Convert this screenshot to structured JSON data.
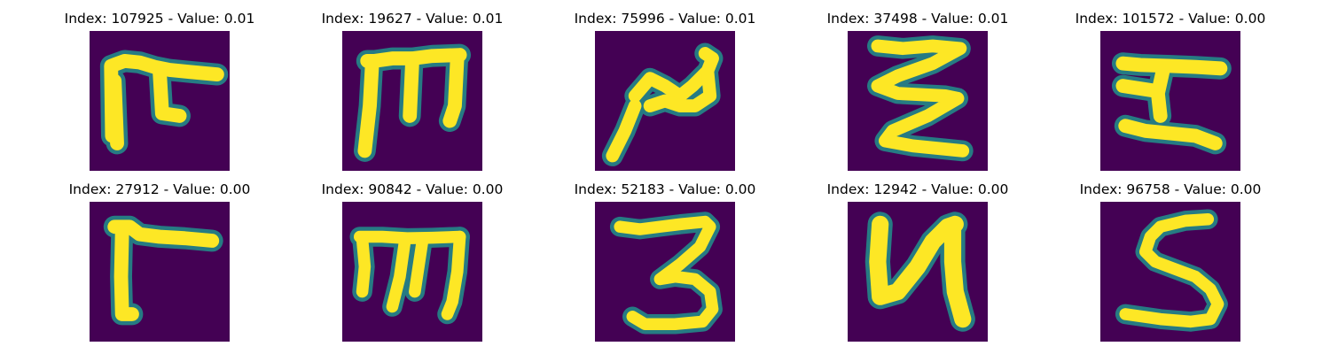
{
  "colors": {
    "background": "#440154",
    "mid": "#21918c",
    "high": "#fde725"
  },
  "panels": [
    {
      "title": "Index: 107925 - Value: 0.01",
      "glyph": "ligature-ta"
    },
    {
      "title": "Index: 19627 - Value: 0.01",
      "glyph": "ligature-m"
    },
    {
      "title": "Index: 75996 - Value: 0.01",
      "glyph": "ligature-squiggle"
    },
    {
      "title": "Index: 37498 - Value: 0.01",
      "glyph": "ligature-zigzag"
    },
    {
      "title": "Index: 101572 - Value: 0.00",
      "glyph": "ligature-i-beam"
    },
    {
      "title": "Index: 27912 - Value: 0.00",
      "glyph": "ligature-gamma"
    },
    {
      "title": "Index: 90842 - Value: 0.00",
      "glyph": "ligature-m-open"
    },
    {
      "title": "Index: 52183 - Value: 0.00",
      "glyph": "digit-three"
    },
    {
      "title": "Index: 12942 - Value: 0.00",
      "glyph": "ligature-u"
    },
    {
      "title": "Index: 96758 - Value: 0.00",
      "glyph": "digit-five"
    }
  ]
}
